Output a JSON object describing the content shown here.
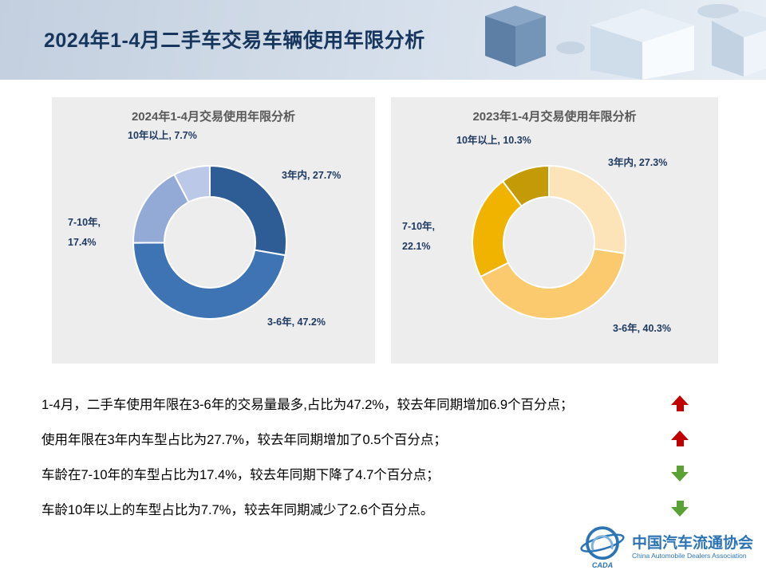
{
  "slide": {
    "title": "2024年1-4月二手车交易车辆使用年限分析"
  },
  "chart_data": [
    {
      "type": "pie",
      "subtype": "donut",
      "title": "2024年1-4月交易使用年限分析",
      "categories": [
        "3年内",
        "3-6年",
        "7-10年",
        "10年以上"
      ],
      "values": [
        27.7,
        47.2,
        17.4,
        7.7
      ],
      "unit": "%",
      "colors": [
        "#2e5c94",
        "#3e73b4",
        "#93a9d6",
        "#bcc8e8"
      ],
      "legend": "none",
      "labels": {
        "in3": "3年内, 27.7%",
        "y3to6": "3-6年, 47.2%",
        "y7to10_l1": "7-10年,",
        "y7to10_l2": "17.4%",
        "over10": "10年以上, 7.7%"
      }
    },
    {
      "type": "pie",
      "subtype": "donut",
      "title": "2023年1-4月交易使用年限分析",
      "categories": [
        "3年内",
        "3-6年",
        "7-10年",
        "10年以上"
      ],
      "values": [
        27.3,
        40.3,
        22.1,
        10.3
      ],
      "unit": "%",
      "colors": [
        "#fce4b8",
        "#fbca6e",
        "#f0b400",
        "#c49a06"
      ],
      "legend": "none",
      "labels": {
        "in3": "3年内, 27.3%",
        "y3to6": "3-6年, 40.3%",
        "y7to10_l1": "7-10年,",
        "y7to10_l2": "22.1%",
        "over10": "10年以上, 10.3%"
      }
    }
  ],
  "insights": [
    {
      "text": "1-4月，二手车使用年限在3-6年的交易量最多,占比为47.2%，较去年同期增加6.9个百分点；",
      "arrow": "up"
    },
    {
      "text": "使用年限在3年内车型占比为27.7%，较去年同期增加了0.5个百分点；",
      "arrow": "up"
    },
    {
      "text": "车龄在7-10年的车型占比为17.4%，较去年同期下降了4.7个百分点；",
      "arrow": "down"
    },
    {
      "text": "车龄10年以上的车型占比为7.7%，较去年同期减少了2.6个百分点。",
      "arrow": "down"
    }
  ],
  "trend_colors": {
    "up": "#c00000",
    "down": "#5ba136"
  },
  "logo": {
    "abbr": "CADA",
    "name_zh": "中国汽车流通协会",
    "name_en": "China Automobile Dealers Association"
  }
}
